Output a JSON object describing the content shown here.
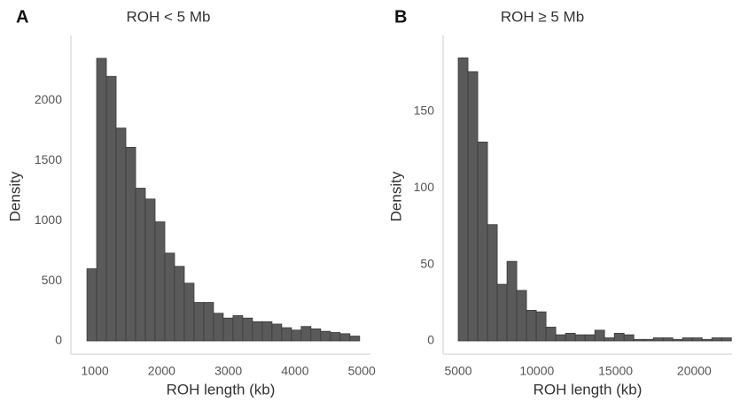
{
  "chart_data": [
    {
      "type": "histogram",
      "panel": "A",
      "title": "ROH < 5 Mb",
      "x_label": "ROH length (kb)",
      "y_label": "Density",
      "color": "#5a5a5a",
      "bins": [
        880,
        1026,
        1172,
        1318,
        1464,
        1610,
        1756,
        1902,
        2048,
        2194,
        2340,
        2486,
        2632,
        2778,
        2924,
        3070,
        3216,
        3362,
        3508,
        3654,
        3800,
        3946,
        4092,
        4238,
        4384,
        4530,
        4676,
        4822,
        4968
      ],
      "values": [
        600,
        2350,
        2200,
        1770,
        1610,
        1270,
        1180,
        990,
        730,
        620,
        480,
        320,
        320,
        230,
        190,
        210,
        190,
        160,
        160,
        140,
        110,
        90,
        120,
        100,
        80,
        70,
        60,
        40
      ],
      "xlim": [
        640,
        5130
      ],
      "ylim": [
        0,
        2430
      ],
      "xticks": [
        1000,
        2000,
        3000,
        4000,
        5000
      ],
      "yticks": [
        0,
        500,
        1000,
        1500,
        2000
      ]
    },
    {
      "type": "histogram",
      "panel": "B",
      "title": "ROH ≥ 5 Mb",
      "x_label": "ROH length (kb)",
      "y_label": "Density",
      "color": "#5a5a5a",
      "bins": [
        5000,
        5620,
        6240,
        6860,
        7480,
        8100,
        8720,
        9340,
        9960,
        10580,
        11200,
        11820,
        12440,
        13060,
        13680,
        14300,
        14920,
        15540,
        16160,
        16780,
        17400,
        18020,
        18640,
        19260,
        19880,
        20500,
        21120,
        21740,
        22360
      ],
      "values": [
        185,
        176,
        130,
        76,
        37,
        52,
        33,
        20,
        19,
        9,
        4,
        5,
        4,
        4,
        7,
        2,
        5,
        4,
        1,
        1,
        2,
        2,
        1,
        2,
        2,
        1,
        2,
        2
      ],
      "xlim": [
        4040,
        22400
      ],
      "ylim": [
        0,
        191
      ],
      "xticks": [
        5000,
        10000,
        15000,
        20000
      ],
      "yticks": [
        0,
        50,
        100,
        150
      ]
    }
  ]
}
